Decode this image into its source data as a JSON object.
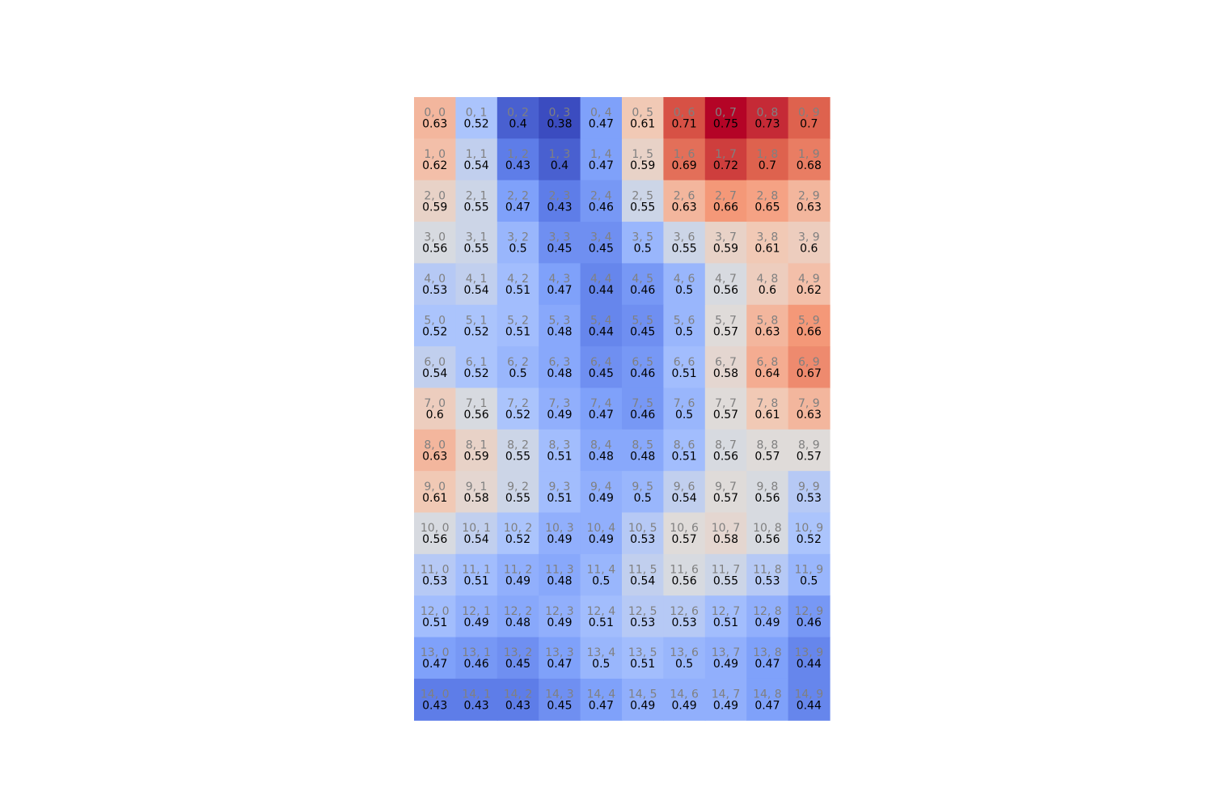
{
  "chart_data": {
    "type": "heatmap",
    "colormap": "coolwarm",
    "vmin": 0.38,
    "vmax": 0.75,
    "rows": 15,
    "cols": 10,
    "index_label_color": "#808080",
    "value_label_color": "#000000",
    "values": [
      [
        0.63,
        0.52,
        0.4,
        0.38,
        0.47,
        0.61,
        0.71,
        0.75,
        0.73,
        0.7
      ],
      [
        0.62,
        0.54,
        0.43,
        0.4,
        0.47,
        0.59,
        0.69,
        0.72,
        0.7,
        0.68
      ],
      [
        0.59,
        0.55,
        0.47,
        0.43,
        0.46,
        0.55,
        0.63,
        0.66,
        0.65,
        0.63
      ],
      [
        0.56,
        0.55,
        0.5,
        0.45,
        0.45,
        0.5,
        0.55,
        0.59,
        0.61,
        0.6
      ],
      [
        0.53,
        0.54,
        0.51,
        0.47,
        0.44,
        0.46,
        0.5,
        0.56,
        0.6,
        0.62
      ],
      [
        0.52,
        0.52,
        0.51,
        0.48,
        0.44,
        0.45,
        0.5,
        0.57,
        0.63,
        0.66
      ],
      [
        0.54,
        0.52,
        0.5,
        0.48,
        0.45,
        0.46,
        0.51,
        0.58,
        0.64,
        0.67
      ],
      [
        0.6,
        0.56,
        0.52,
        0.49,
        0.47,
        0.46,
        0.5,
        0.57,
        0.61,
        0.63
      ],
      [
        0.63,
        0.59,
        0.55,
        0.51,
        0.48,
        0.48,
        0.51,
        0.56,
        0.57,
        0.57
      ],
      [
        0.61,
        0.58,
        0.55,
        0.51,
        0.49,
        0.5,
        0.54,
        0.57,
        0.56,
        0.53
      ],
      [
        0.56,
        0.54,
        0.52,
        0.49,
        0.49,
        0.53,
        0.57,
        0.58,
        0.56,
        0.52
      ],
      [
        0.53,
        0.51,
        0.49,
        0.48,
        0.5,
        0.54,
        0.56,
        0.55,
        0.53,
        0.5
      ],
      [
        0.51,
        0.49,
        0.48,
        0.49,
        0.51,
        0.53,
        0.53,
        0.51,
        0.49,
        0.46
      ],
      [
        0.47,
        0.46,
        0.45,
        0.47,
        0.5,
        0.51,
        0.5,
        0.49,
        0.47,
        0.44
      ],
      [
        0.43,
        0.43,
        0.43,
        0.45,
        0.47,
        0.49,
        0.49,
        0.49,
        0.47,
        0.44
      ]
    ]
  }
}
